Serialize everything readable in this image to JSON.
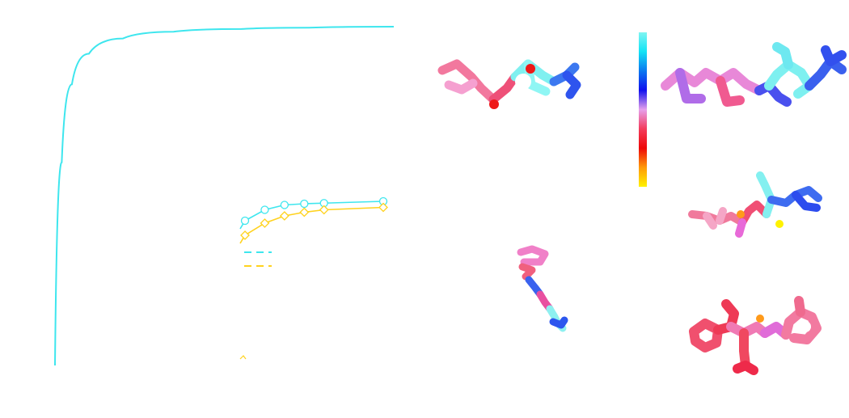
{
  "colors": {
    "series_cyan": "#3ee6ee",
    "series_yellow": "#ffd21e",
    "colorbar_stops": [
      "#7ff5f2",
      "#12e3f5",
      "#0a78f0",
      "#1010ee",
      "#e6a0ec",
      "#f33c5c",
      "#ee0808",
      "#ff9a08",
      "#fff200"
    ]
  },
  "chart_data": [
    {
      "type": "line",
      "panel": "left-main",
      "series": [
        {
          "color": "#3ee6ee",
          "x": [
            0.0,
            0.02,
            0.05,
            0.1,
            0.2,
            0.35,
            0.55,
            0.75,
            1.0
          ],
          "y": [
            0.0,
            0.6,
            0.83,
            0.92,
            0.965,
            0.985,
            0.993,
            0.997,
            1.0
          ]
        }
      ]
    },
    {
      "type": "line",
      "panel": "inset",
      "series": [
        {
          "color": "#3ee6ee",
          "marker": "circle",
          "x": [
            1,
            2,
            3,
            4,
            5,
            8
          ],
          "y": [
            0.78,
            0.87,
            0.91,
            0.92,
            0.925,
            0.94
          ]
        },
        {
          "color": "#ffd21e",
          "marker": "diamond",
          "x": [
            1,
            2,
            3,
            4,
            5,
            8
          ],
          "y": [
            0.66,
            0.76,
            0.82,
            0.85,
            0.87,
            0.89
          ]
        }
      ]
    }
  ],
  "molecules": [
    {
      "name": "molecule-top-left",
      "shading": "mixed"
    },
    {
      "name": "molecule-top-right",
      "shading": "mixed"
    },
    {
      "name": "molecule-middle-right",
      "shading": "mixed"
    },
    {
      "name": "molecule-bottom-center",
      "shading": "mixed"
    },
    {
      "name": "molecule-bottom-right",
      "shading": "mixed"
    }
  ]
}
